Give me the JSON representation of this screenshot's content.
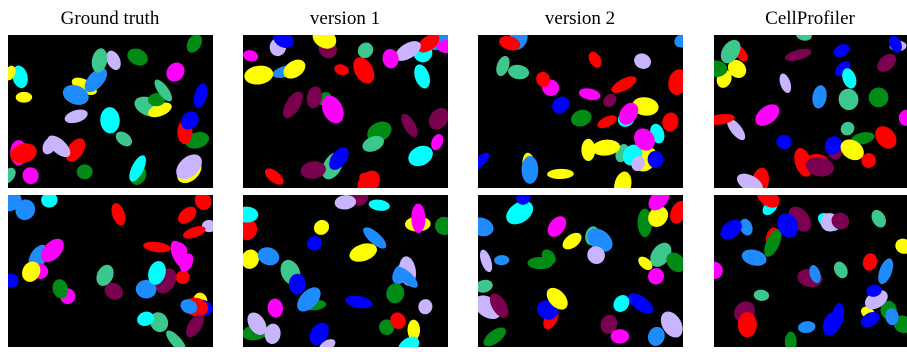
{
  "titles": [
    "Ground truth",
    "version 1",
    "version 2",
    "CellProfiler"
  ]
}
